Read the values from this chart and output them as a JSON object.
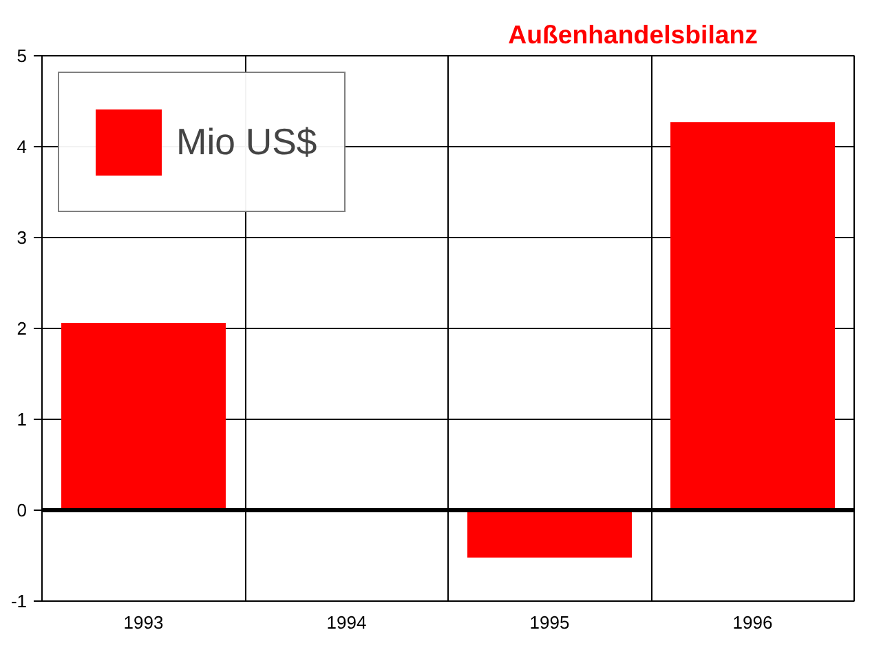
{
  "chart_data": {
    "type": "bar",
    "title": "Außenhandelsbilanz",
    "categories": [
      "1993",
      "1994",
      "1995",
      "1996"
    ],
    "series": [
      {
        "name": "Mio US$",
        "color": "#ff0000",
        "values": [
          2.06,
          0,
          -0.52,
          4.27
        ]
      }
    ],
    "ylim": [
      -1,
      5
    ],
    "yticks": [
      -1,
      0,
      1,
      2,
      3,
      4,
      5
    ],
    "grid": true,
    "legend": "top left",
    "ref_lines": [
      {
        "axis": "y",
        "value": 0,
        "color": "#000000"
      }
    ]
  }
}
